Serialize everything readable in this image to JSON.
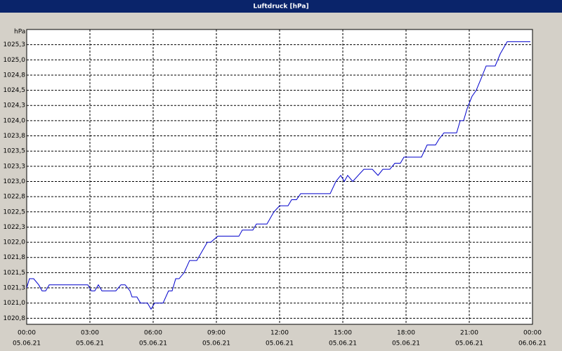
{
  "chart_data": {
    "type": "line",
    "title": "Luftdruck [hPa]",
    "y_unit": "hPa",
    "x": [
      0,
      0.13,
      0.33,
      0.57,
      0.73,
      0.9,
      1.07,
      2.9,
      3.07,
      3.23,
      3.4,
      3.57,
      4.23,
      4.47,
      4.67,
      4.9,
      5.0,
      5.23,
      5.4,
      5.73,
      5.9,
      6.07,
      6.47,
      6.73,
      6.9,
      7.07,
      7.23,
      7.47,
      7.73,
      8.07,
      8.57,
      8.73,
      9.07,
      10.07,
      10.23,
      10.73,
      10.9,
      11.4,
      11.73,
      12.0,
      12.4,
      12.57,
      12.8,
      13.0,
      14.4,
      14.67,
      14.9,
      15.07,
      15.23,
      15.47,
      15.73,
      16.0,
      16.4,
      16.67,
      16.9,
      17.23,
      17.47,
      17.73,
      17.9,
      18.73,
      19.0,
      19.4,
      19.57,
      19.8,
      20.4,
      20.57,
      20.73,
      20.9,
      21.13,
      21.33,
      21.57,
      21.8,
      22.23,
      22.47,
      22.8,
      23.9
    ],
    "series": [
      {
        "name": "Luftdruck",
        "color": "#0000cc",
        "values": [
          1021.25,
          1021.4,
          1021.4,
          1021.3,
          1021.2,
          1021.2,
          1021.3,
          1021.3,
          1021.2,
          1021.2,
          1021.3,
          1021.2,
          1021.2,
          1021.3,
          1021.3,
          1021.2,
          1021.1,
          1021.1,
          1021.0,
          1021.0,
          1020.9,
          1021.0,
          1021.0,
          1021.2,
          1021.2,
          1021.4,
          1021.4,
          1021.5,
          1021.7,
          1021.7,
          1022.0,
          1022.0,
          1022.1,
          1022.1,
          1022.2,
          1022.2,
          1022.3,
          1022.3,
          1022.5,
          1022.6,
          1022.6,
          1022.7,
          1022.7,
          1022.8,
          1022.8,
          1023.0,
          1023.1,
          1023.0,
          1023.1,
          1023.0,
          1023.1,
          1023.2,
          1023.2,
          1023.1,
          1023.2,
          1023.2,
          1023.3,
          1023.3,
          1023.4,
          1023.4,
          1023.6,
          1023.6,
          1023.7,
          1023.8,
          1023.8,
          1024.0,
          1024.0,
          1024.2,
          1024.4,
          1024.5,
          1024.7,
          1024.9,
          1024.9,
          1025.1,
          1025.3,
          1025.3
        ]
      }
    ],
    "xlim": [
      0,
      24
    ],
    "xticks": [
      {
        "value": 0,
        "label": "00:00"
      },
      {
        "value": 3,
        "label": "03:00"
      },
      {
        "value": 6,
        "label": "06:00"
      },
      {
        "value": 9,
        "label": "09:00"
      },
      {
        "value": 12,
        "label": "12:00"
      },
      {
        "value": 15,
        "label": "15:00"
      },
      {
        "value": 18,
        "label": "18:00"
      },
      {
        "value": 21,
        "label": "21:00"
      },
      {
        "value": 24,
        "label": "00:00"
      }
    ],
    "xtick_dates": [
      "05.06.21",
      "05.06.21",
      "05.06.21",
      "05.06.21",
      "05.06.21",
      "05.06.21",
      "05.06.21",
      "05.06.21",
      "06.06.21"
    ],
    "ylim": [
      1020.65,
      1025.5
    ],
    "yticks": [
      {
        "value": 1020.75,
        "label": "1020,8"
      },
      {
        "value": 1021,
        "label": "1021,0"
      },
      {
        "value": 1021.25,
        "label": "1021,3"
      },
      {
        "value": 1021.5,
        "label": "1021,5"
      },
      {
        "value": 1021.75,
        "label": "1021,8"
      },
      {
        "value": 1022,
        "label": "1022,0"
      },
      {
        "value": 1022.25,
        "label": "1022,3"
      },
      {
        "value": 1022.5,
        "label": "1022,5"
      },
      {
        "value": 1022.75,
        "label": "1022,8"
      },
      {
        "value": 1023,
        "label": "1023,0"
      },
      {
        "value": 1023.25,
        "label": "1023,3"
      },
      {
        "value": 1023.5,
        "label": "1023,5"
      },
      {
        "value": 1023.75,
        "label": "1023,8"
      },
      {
        "value": 1024,
        "label": "1024,0"
      },
      {
        "value": 1024.25,
        "label": "1024,3"
      },
      {
        "value": 1024.5,
        "label": "1024,5"
      },
      {
        "value": 1024.75,
        "label": "1024,8"
      },
      {
        "value": 1025,
        "label": "1025,0"
      },
      {
        "value": 1025.25,
        "label": "1025,3"
      }
    ],
    "grid": true
  }
}
